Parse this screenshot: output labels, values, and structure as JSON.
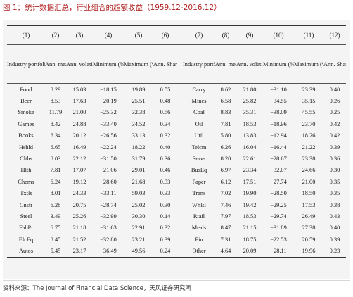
{
  "figure_title": "图 1：统计数据汇总，行业组合的超额收益（1959.12-2016.12）",
  "column_numbers": [
    "(1)",
    "(2)",
    "(3)",
    "(4)",
    "(5)",
    "(6)",
    "(7)",
    "(8)",
    "(9)",
    "(10)",
    "(11)",
    "(12)"
  ],
  "headers": {
    "industry": "Industry portfolio",
    "mean": "Ann. mean (%)",
    "volatility": "Ann. volatility (%)",
    "minimum": "Minimum (%)",
    "maximum": "Maximum (%)",
    "sharpe": "Ann. Sharpe ratio"
  },
  "rows": [
    {
      "left": [
        "Food",
        "8.29",
        "15.03",
        "−18.15",
        "19.89",
        "0.55"
      ],
      "right": [
        "Carry",
        "8.62",
        "21.80",
        "−31.10",
        "23.39",
        "0.40"
      ]
    },
    {
      "left": [
        "Beer",
        "8.53",
        "17.63",
        "−20.19",
        "25.51",
        "0.48"
      ],
      "right": [
        "Mines",
        "6.58",
        "25.82",
        "−34.55",
        "35.15",
        "0.26"
      ]
    },
    {
      "left": [
        "Smoke",
        "11.79",
        "21.00",
        "−25.32",
        "32.38",
        "0.56"
      ],
      "right": [
        "Coal",
        "8.83",
        "35.31",
        "−38.09",
        "45.55",
        "0.25"
      ]
    },
    {
      "left": [
        "Games",
        "8.42",
        "24.88",
        "−33.40",
        "34.52",
        "0.34"
      ],
      "right": [
        "Oil",
        "7.81",
        "18.53",
        "−18.96",
        "23.70",
        "0.42"
      ]
    },
    {
      "left": [
        "Books",
        "6.34",
        "20.12",
        "−26.56",
        "33.13",
        "0.32"
      ],
      "right": [
        "Util",
        "5.80",
        "13.83",
        "−12.94",
        "18.26",
        "0.42"
      ]
    },
    {
      "left": [
        "Hshld",
        "6.65",
        "16.49",
        "−22.24",
        "18.22",
        "0.40"
      ],
      "right": [
        "Telcm",
        "6.26",
        "16.04",
        "−16.44",
        "21.22",
        "0.39"
      ]
    },
    {
      "left": [
        "Clths",
        "8.03",
        "22.12",
        "−31.50",
        "31.79",
        "0.36"
      ],
      "right": [
        "Servs",
        "8.20",
        "22.61",
        "−28.67",
        "23.38",
        "0.36"
      ]
    },
    {
      "left": [
        "Hlth",
        "7.81",
        "17.07",
        "−21.06",
        "29.01",
        "0.46"
      ],
      "right": [
        "BusEq",
        "6.97",
        "23.34",
        "−32.07",
        "24.66",
        "0.30"
      ]
    },
    {
      "left": [
        "Chems",
        "6.24",
        "19.12",
        "−28.60",
        "21.68",
        "0.33"
      ],
      "right": [
        "Paper",
        "6.12",
        "17.51",
        "−27.74",
        "21.00",
        "0.35"
      ]
    },
    {
      "left": [
        "Txtls",
        "8.01",
        "24.33",
        "−33.11",
        "59.03",
        "0.33"
      ],
      "right": [
        "Trans",
        "7.02",
        "19.90",
        "−28.50",
        "18.50",
        "0.35"
      ]
    },
    {
      "left": [
        "Cnstr",
        "6.28",
        "20.75",
        "−28.74",
        "25.02",
        "0.30"
      ],
      "right": [
        "Whlsl",
        "7.46",
        "19.42",
        "−29.25",
        "17.53",
        "0.38"
      ]
    },
    {
      "left": [
        "Steel",
        "3.49",
        "25.26",
        "−32.99",
        "30.30",
        "0.14"
      ],
      "right": [
        "Rtail",
        "7.97",
        "18.53",
        "−29.74",
        "26.49",
        "0.43"
      ]
    },
    {
      "left": [
        "FabPr",
        "6.75",
        "21.18",
        "−31.63",
        "22.91",
        "0.32"
      ],
      "right": [
        "Meals",
        "8.47",
        "21.15",
        "−31.89",
        "27.38",
        "0.40"
      ]
    },
    {
      "left": [
        "ElcEq",
        "8.45",
        "21.52",
        "−32.80",
        "23.21",
        "0.39"
      ],
      "right": [
        "Fin",
        "7.31",
        "18.75",
        "−22.53",
        "20.59",
        "0.39"
      ]
    },
    {
      "left": [
        "Autos",
        "5.45",
        "23.17",
        "−36.49",
        "49.56",
        "0.24"
      ],
      "right": [
        "Other",
        "4.64",
        "20.09",
        "−28.11",
        "19.96",
        "0.23"
      ]
    }
  ],
  "source": "资料来源：The Journal of Financial Data Science，天风证券研究所"
}
